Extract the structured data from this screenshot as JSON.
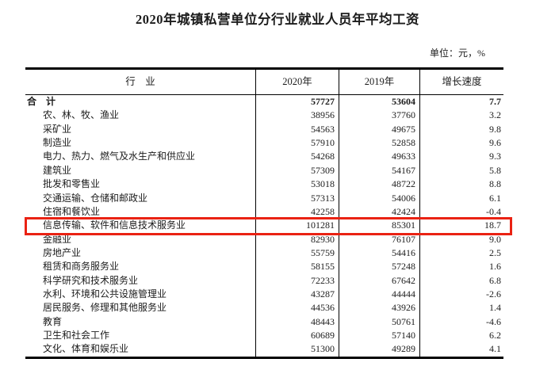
{
  "title": "2020年城镇私营单位分行业就业人员年平均工资",
  "unit_note": "单位：元，%",
  "highlight_color": "#ea2213",
  "table": {
    "columns": [
      "行　业",
      "2020年",
      "2019年",
      "增长速度"
    ],
    "rows": [
      {
        "industry": "合　计",
        "y2020": "57727",
        "y2019": "53604",
        "growth": "7.7",
        "total": true
      },
      {
        "industry": "农、林、牧、渔业",
        "y2020": "38956",
        "y2019": "37760",
        "growth": "3.2"
      },
      {
        "industry": "采矿业",
        "y2020": "54563",
        "y2019": "49675",
        "growth": "9.8"
      },
      {
        "industry": "制造业",
        "y2020": "57910",
        "y2019": "52858",
        "growth": "9.6"
      },
      {
        "industry": "电力、热力、燃气及水生产和供应业",
        "y2020": "54268",
        "y2019": "49633",
        "growth": "9.3"
      },
      {
        "industry": "建筑业",
        "y2020": "57309",
        "y2019": "54167",
        "growth": "5.8"
      },
      {
        "industry": "批发和零售业",
        "y2020": "53018",
        "y2019": "48722",
        "growth": "8.8"
      },
      {
        "industry": "交通运输、仓储和邮政业",
        "y2020": "57313",
        "y2019": "54006",
        "growth": "6.1"
      },
      {
        "industry": "住宿和餐饮业",
        "y2020": "42258",
        "y2019": "42424",
        "growth": "-0.4"
      },
      {
        "industry": "信息传输、软件和信息技术服务业",
        "y2020": "101281",
        "y2019": "85301",
        "growth": "18.7",
        "highlighted": true
      },
      {
        "industry": "金融业",
        "y2020": "82930",
        "y2019": "76107",
        "growth": "9.0"
      },
      {
        "industry": "房地产业",
        "y2020": "55759",
        "y2019": "54416",
        "growth": "2.5"
      },
      {
        "industry": "租赁和商务服务业",
        "y2020": "58155",
        "y2019": "57248",
        "growth": "1.6"
      },
      {
        "industry": "科学研究和技术服务业",
        "y2020": "72233",
        "y2019": "67642",
        "growth": "6.8"
      },
      {
        "industry": "水利、环境和公共设施管理业",
        "y2020": "43287",
        "y2019": "44444",
        "growth": "-2.6"
      },
      {
        "industry": "居民服务、修理和其他服务业",
        "y2020": "44536",
        "y2019": "43926",
        "growth": "1.4"
      },
      {
        "industry": "教育",
        "y2020": "48443",
        "y2019": "50761",
        "growth": "-4.6"
      },
      {
        "industry": "卫生和社会工作",
        "y2020": "60689",
        "y2019": "57140",
        "growth": "6.2"
      },
      {
        "industry": "文化、体育和娱乐业",
        "y2020": "51300",
        "y2019": "49289",
        "growth": "4.1"
      }
    ]
  }
}
